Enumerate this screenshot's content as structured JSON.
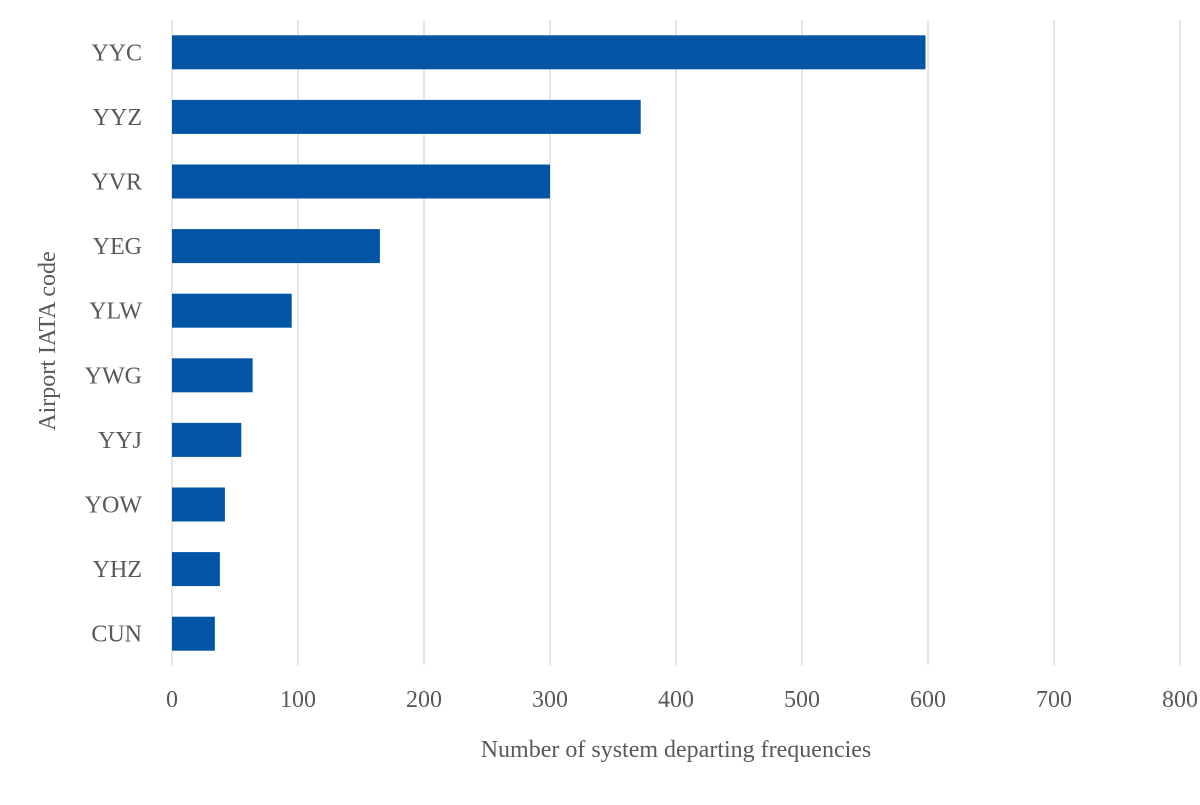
{
  "chart_data": {
    "type": "bar",
    "orientation": "horizontal",
    "title": "",
    "xlabel": "Number of system departing frequencies",
    "ylabel": "Airport IATA code",
    "categories": [
      "YYC",
      "YYZ",
      "YVR",
      "YEG",
      "YLW",
      "YWG",
      "YYJ",
      "YOW",
      "YHZ",
      "CUN"
    ],
    "values": [
      598,
      372,
      300,
      165,
      95,
      64,
      55,
      42,
      38,
      34
    ],
    "xlim": [
      0,
      800
    ],
    "xticks": [
      "0",
      "100",
      "200",
      "300",
      "400",
      "500",
      "600",
      "700",
      "800"
    ],
    "grid": "vertical",
    "legend": "none",
    "colors": {
      "bar": "#0255A5",
      "grid": "#D9D9D9",
      "text": "#595959"
    }
  }
}
